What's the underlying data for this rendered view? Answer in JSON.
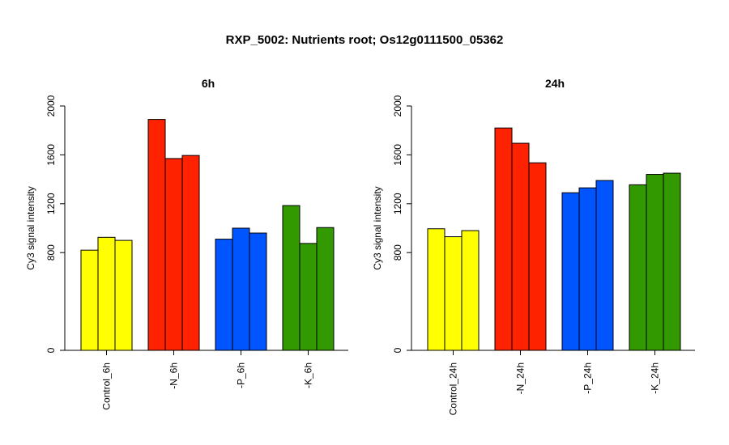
{
  "title": "RXP_5002: Nutrients root; Os12g0111500_05362",
  "chart_data": [
    {
      "type": "bar",
      "title": "6h",
      "ylabel": "Cy3 signal intensity",
      "ylim": [
        0,
        2000
      ],
      "yticks": [
        0,
        800,
        1200,
        1600,
        2000
      ],
      "categories": [
        "Control_6h",
        "-N_6h",
        "-P_6h",
        "-K_6h"
      ],
      "colors": [
        "#ffff00",
        "#ff2200",
        "#0055ff",
        "#339900"
      ],
      "values": [
        [
          820,
          925,
          900
        ],
        [
          1890,
          1570,
          1595
        ],
        [
          910,
          1000,
          960
        ],
        [
          1185,
          875,
          1005
        ]
      ]
    },
    {
      "type": "bar",
      "title": "24h",
      "ylabel": "Cy3 signal intensity",
      "ylim": [
        0,
        2000
      ],
      "yticks": [
        0,
        800,
        1200,
        1600,
        2000
      ],
      "categories": [
        "Control_24h",
        "-N_24h",
        "-P_24h",
        "-K_24h"
      ],
      "colors": [
        "#ffff00",
        "#ff2200",
        "#0055ff",
        "#339900"
      ],
      "values": [
        [
          995,
          930,
          980
        ],
        [
          1820,
          1695,
          1535
        ],
        [
          1290,
          1330,
          1390
        ],
        [
          1355,
          1440,
          1450
        ]
      ]
    }
  ]
}
